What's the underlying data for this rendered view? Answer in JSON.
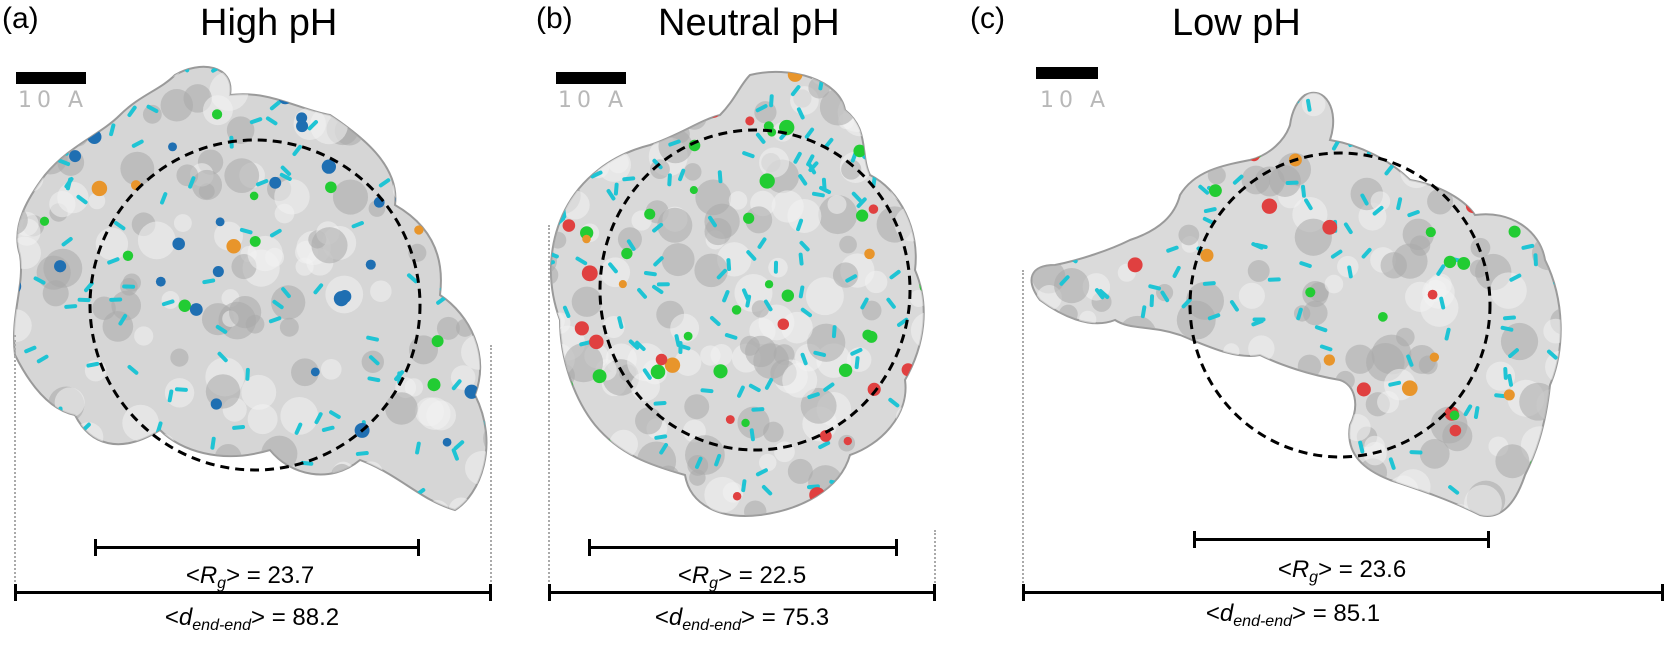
{
  "panels": [
    {
      "letter": "(a)",
      "title": "High pH",
      "scale_label": "10 A",
      "rg_label": "R",
      "rg_sub": "g",
      "rg_value": "= 23.7",
      "dend_label": "d",
      "dend_sub": "end-end",
      "dend_value": "= 88.2",
      "bead_colors": [
        "#1f6fb2",
        "#22cc33",
        "#e8952b"
      ],
      "surface_color": "#d6d6d6",
      "accent_color": "#1fc4d4"
    },
    {
      "letter": "(b)",
      "title": "Neutral pH",
      "scale_label": "10 A",
      "rg_label": "R",
      "rg_sub": "g",
      "rg_value": "= 22.5",
      "dend_label": "d",
      "dend_sub": "end-end",
      "dend_value": "= 75.3",
      "bead_colors": [
        "#22cc33",
        "#e04040",
        "#e8952b"
      ],
      "surface_color": "#d9d9d9",
      "accent_color": "#1fc4d4"
    },
    {
      "letter": "(c)",
      "title": "Low pH",
      "scale_label": "10 A",
      "rg_label": "R",
      "rg_sub": "g",
      "rg_value": "= 23.6",
      "dend_label": "d",
      "dend_sub": "end-end",
      "dend_value": "= 85.1",
      "bead_colors": [
        "#22cc33",
        "#e04040",
        "#e8952b"
      ],
      "surface_color": "#dadada",
      "accent_color": "#1fc4d4"
    }
  ]
}
